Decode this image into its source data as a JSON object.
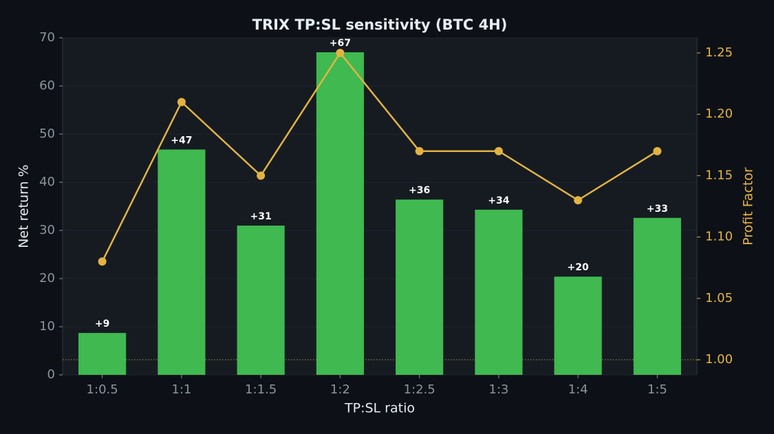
{
  "chart_data": {
    "type": "bar_line",
    "title": "TRIX TP:SL sensitivity (BTC 4H)",
    "xlabel": "TP:SL ratio",
    "ylabel": "Net return %",
    "y2label": "Profit Factor",
    "categories": [
      "1:0.5",
      "1:1",
      "1:1.5",
      "1:2",
      "1:2.5",
      "1:3",
      "1:4",
      "1:5"
    ],
    "series": [
      {
        "type": "bar",
        "color": "#3fb950",
        "values": [
          8.7,
          46.8,
          31.0,
          67.0,
          36.4,
          34.3,
          20.4,
          32.6
        ],
        "value_labels": [
          "+9",
          "+47",
          "+31",
          "+67",
          "+36",
          "+34",
          "+20",
          "+33"
        ]
      },
      {
        "type": "line",
        "axis": "y2",
        "color": "#e3b341",
        "values": [
          1.08,
          1.21,
          1.15,
          1.25,
          1.17,
          1.17,
          1.13,
          1.17
        ]
      }
    ],
    "ylim": [
      0,
      70
    ],
    "yticks": [
      0,
      10,
      20,
      30,
      40,
      50,
      60,
      70
    ],
    "y2lim": [
      0.9877,
      1.2623
    ],
    "y2ticks": [
      {
        "value": 1.0,
        "label": "1.00"
      },
      {
        "value": 1.05,
        "label": "1.05"
      },
      {
        "value": 1.1,
        "label": "1.10"
      },
      {
        "value": 1.15,
        "label": "1.15"
      },
      {
        "value": 1.2,
        "label": "1.20"
      },
      {
        "value": 1.25,
        "label": "1.25"
      }
    ],
    "y2_reference": 1.0,
    "grid": true
  }
}
